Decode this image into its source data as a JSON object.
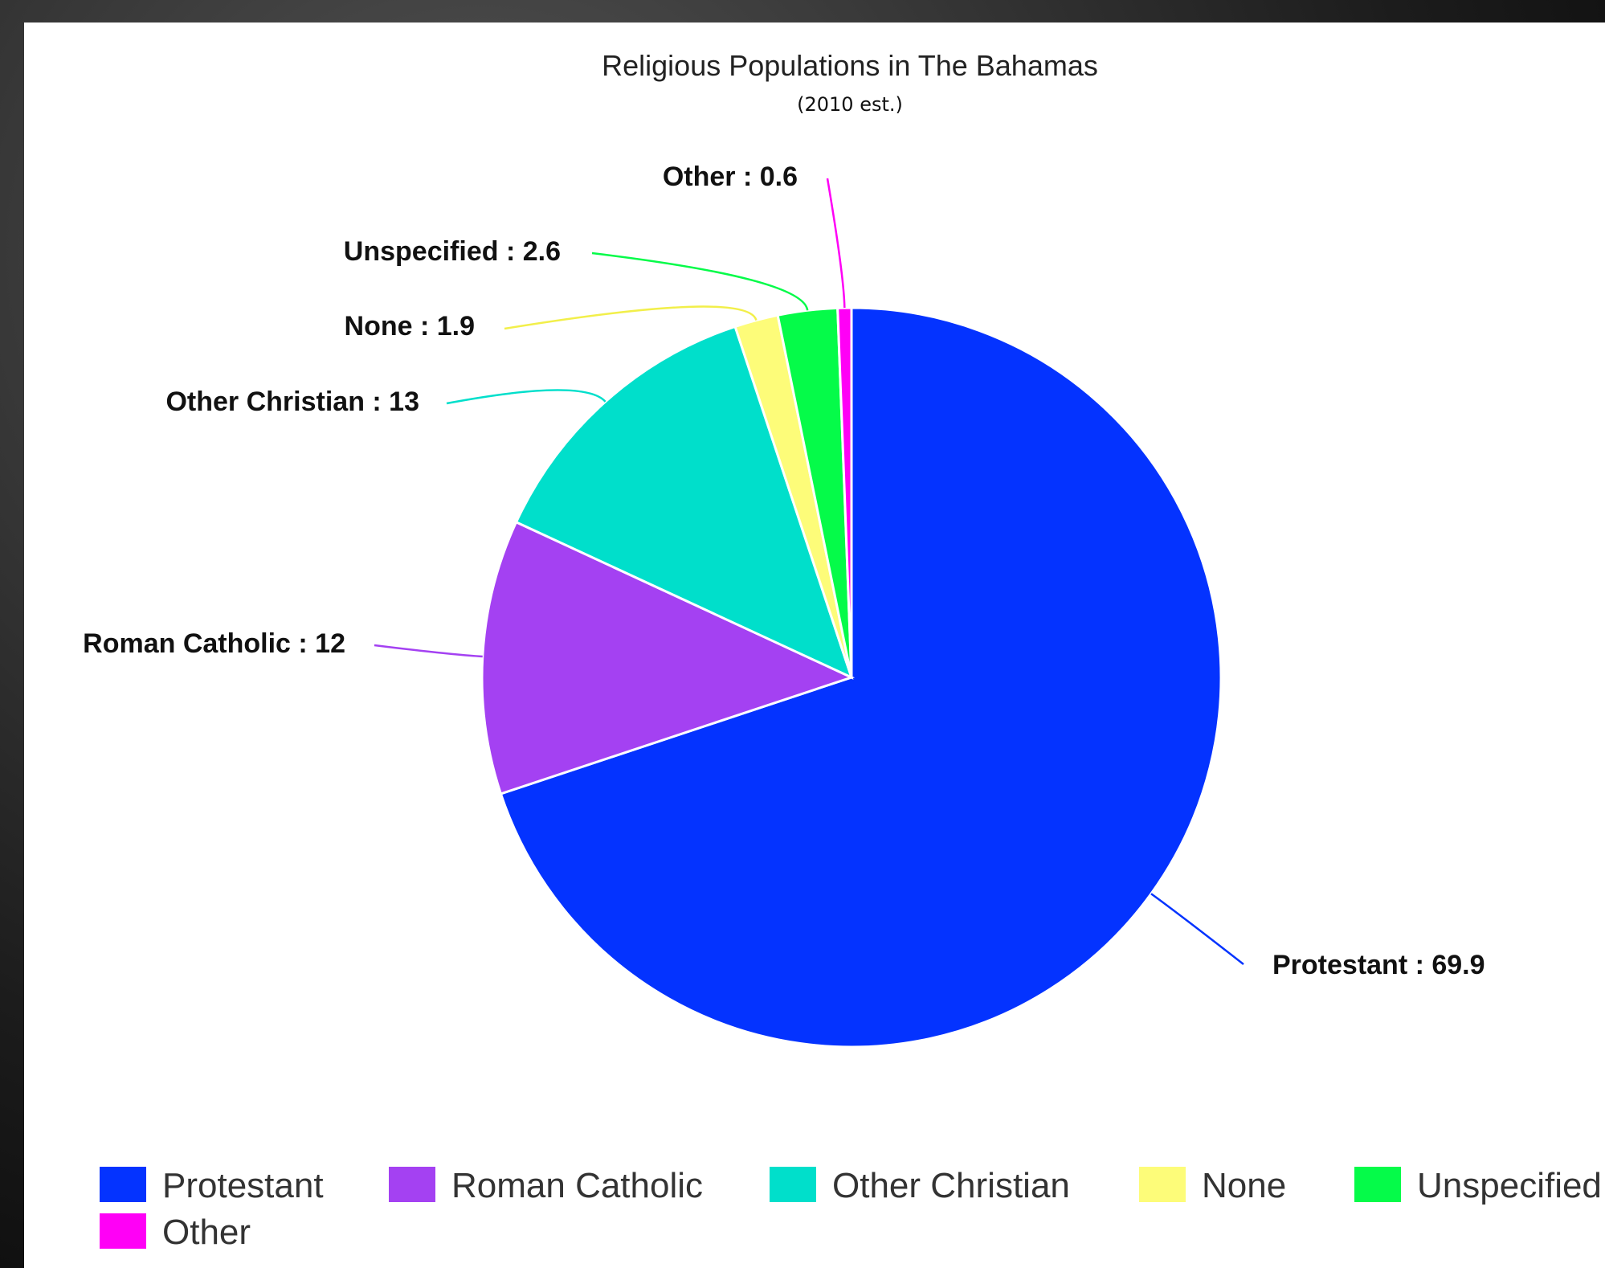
{
  "chart_data": {
    "type": "pie",
    "title": "Religious Populations in The Bahamas",
    "subtitle": "(2010 est.)",
    "slices": [
      {
        "label": "Protestant",
        "value": 69.9,
        "color": "#0433ff",
        "data_label": "Protestant : 69.9"
      },
      {
        "label": "Roman Catholic",
        "value": 12,
        "color": "#a441f2",
        "data_label": "Roman Catholic : 12"
      },
      {
        "label": "Other Christian",
        "value": 13,
        "color": "#00dfcb",
        "data_label": "Other Christian : 13"
      },
      {
        "label": "None",
        "value": 1.9,
        "color": "#fdfc79",
        "data_label": "None : 1.9"
      },
      {
        "label": "Unspecified",
        "value": 2.6,
        "color": "#05fb49",
        "data_label": "Unspecified : 2.6"
      },
      {
        "label": "Other",
        "value": 0.6,
        "color": "#ff00f6",
        "data_label": "Other : 0.6"
      }
    ],
    "legend": [
      "Protestant",
      "Roman Catholic",
      "Other Christian",
      "None",
      "Unspecified",
      "Other"
    ],
    "legend_position": "bottom"
  }
}
